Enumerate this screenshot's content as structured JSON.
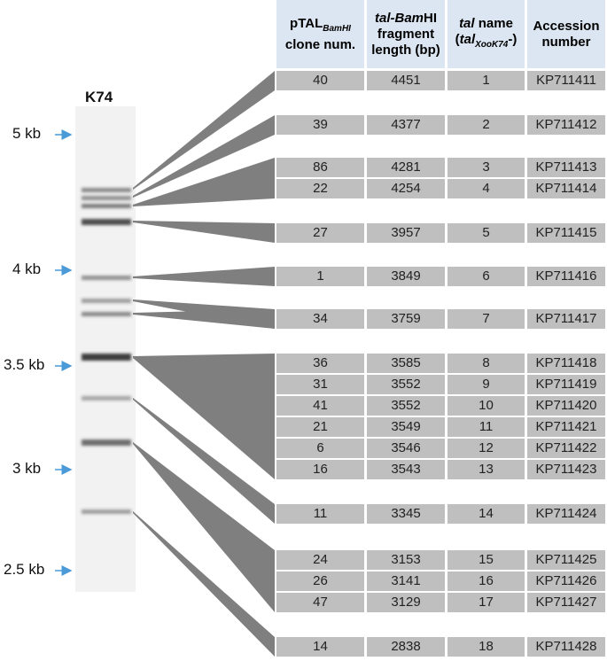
{
  "gel": {
    "lane": "K74",
    "markers": [
      "5 kb",
      "4 kb",
      "3.5 kb",
      "3 kb",
      "2.5 kb"
    ]
  },
  "table": {
    "header": [
      {
        "main": "pTAL",
        "sub": "BamHI",
        "line2": "clone num."
      },
      {
        "italic": "tal-Bam",
        "plain": "HI",
        "line2": "fragment",
        "line3": "length (bp)"
      },
      {
        "italic": "tal",
        "plain": " name",
        "open": "(",
        "italic2": "tal",
        "sub": "XooK74",
        "close": "-)"
      },
      {
        "line1": "Accession",
        "line2": "number"
      }
    ],
    "rows": [
      [
        "40",
        "4451",
        "1",
        "KP711411"
      ],
      [
        "39",
        "4377",
        "2",
        "KP711412"
      ],
      [
        "86",
        "4281",
        "3",
        "KP711413"
      ],
      [
        "22",
        "4254",
        "4",
        "KP711414"
      ],
      [
        "27",
        "3957",
        "5",
        "KP711415"
      ],
      [
        "1",
        "3849",
        "6",
        "KP711416"
      ],
      [
        "34",
        "3759",
        "7",
        "KP711417"
      ],
      [
        "36",
        "3585",
        "8",
        "KP711418"
      ],
      [
        "31",
        "3552",
        "9",
        "KP711419"
      ],
      [
        "41",
        "3552",
        "10",
        "KP711420"
      ],
      [
        "21",
        "3549",
        "11",
        "KP711421"
      ],
      [
        "6",
        "3546",
        "12",
        "KP711422"
      ],
      [
        "16",
        "3543",
        "13",
        "KP711423"
      ],
      [
        "11",
        "3345",
        "14",
        "KP711424"
      ],
      [
        "24",
        "3153",
        "15",
        "KP711425"
      ],
      [
        "26",
        "3141",
        "16",
        "KP711426"
      ],
      [
        "47",
        "3129",
        "17",
        "KP711427"
      ],
      [
        "14",
        "2838",
        "18",
        "KP711428"
      ]
    ]
  }
}
